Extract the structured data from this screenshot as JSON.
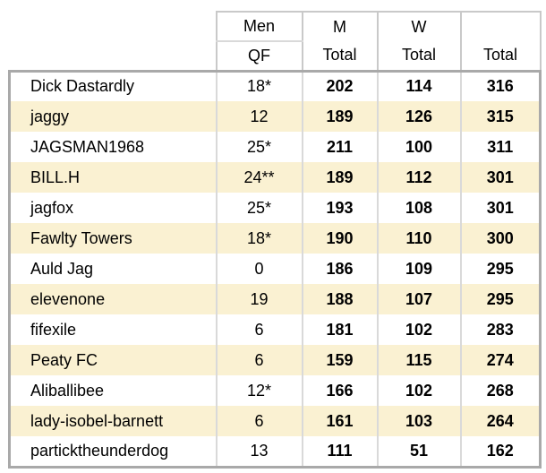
{
  "chart_data": {
    "type": "table",
    "header": {
      "men_line1": "Men",
      "men_line2": "QF",
      "m_line1": "M",
      "m_line2": "Total",
      "w_line1": "W",
      "w_line2": "Total",
      "total_line1": "",
      "total_line2": "Total"
    },
    "columns": [
      "name",
      "men_qf",
      "m_total",
      "w_total",
      "total"
    ],
    "rows": [
      {
        "name": "Dick Dastardly",
        "men_qf": "18*",
        "m_total": "202",
        "w_total": "114",
        "total": "316",
        "highlighted": false
      },
      {
        "name": "jaggy",
        "men_qf": "12",
        "m_total": "189",
        "w_total": "126",
        "total": "315",
        "highlighted": true
      },
      {
        "name": "JAGSMAN1968",
        "men_qf": "25*",
        "m_total": "211",
        "w_total": "100",
        "total": "311",
        "highlighted": false
      },
      {
        "name": "BILL.H",
        "men_qf": "24**",
        "m_total": "189",
        "w_total": "112",
        "total": "301",
        "highlighted": true
      },
      {
        "name": "jagfox",
        "men_qf": "25*",
        "m_total": "193",
        "w_total": "108",
        "total": "301",
        "highlighted": false
      },
      {
        "name": "Fawlty Towers",
        "men_qf": "18*",
        "m_total": "190",
        "w_total": "110",
        "total": "300",
        "highlighted": true
      },
      {
        "name": "Auld Jag",
        "men_qf": "0",
        "m_total": "186",
        "w_total": "109",
        "total": "295",
        "highlighted": false
      },
      {
        "name": "elevenone",
        "men_qf": "19",
        "m_total": "188",
        "w_total": "107",
        "total": "295",
        "highlighted": true
      },
      {
        "name": "fifexile",
        "men_qf": "6",
        "m_total": "181",
        "w_total": "102",
        "total": "283",
        "highlighted": false
      },
      {
        "name": "Peaty FC",
        "men_qf": "6",
        "m_total": "159",
        "w_total": "115",
        "total": "274",
        "highlighted": true
      },
      {
        "name": "Aliballibee",
        "men_qf": "12*",
        "m_total": "166",
        "w_total": "102",
        "total": "268",
        "highlighted": false
      },
      {
        "name": "lady-isobel-barnett",
        "men_qf": "6",
        "m_total": "161",
        "w_total": "103",
        "total": "264",
        "highlighted": true
      },
      {
        "name": "particktheunderdog",
        "men_qf": "13",
        "m_total": "111",
        "w_total": "51",
        "total": "162",
        "highlighted": false
      }
    ]
  },
  "colors": {
    "row_highlight": "#faf1d2",
    "table_outer_border": "#a9a9a9",
    "header_border": "#c9c9c9",
    "column_divider": "#d9d9d9",
    "text": "#000000",
    "background": "#ffffff"
  }
}
